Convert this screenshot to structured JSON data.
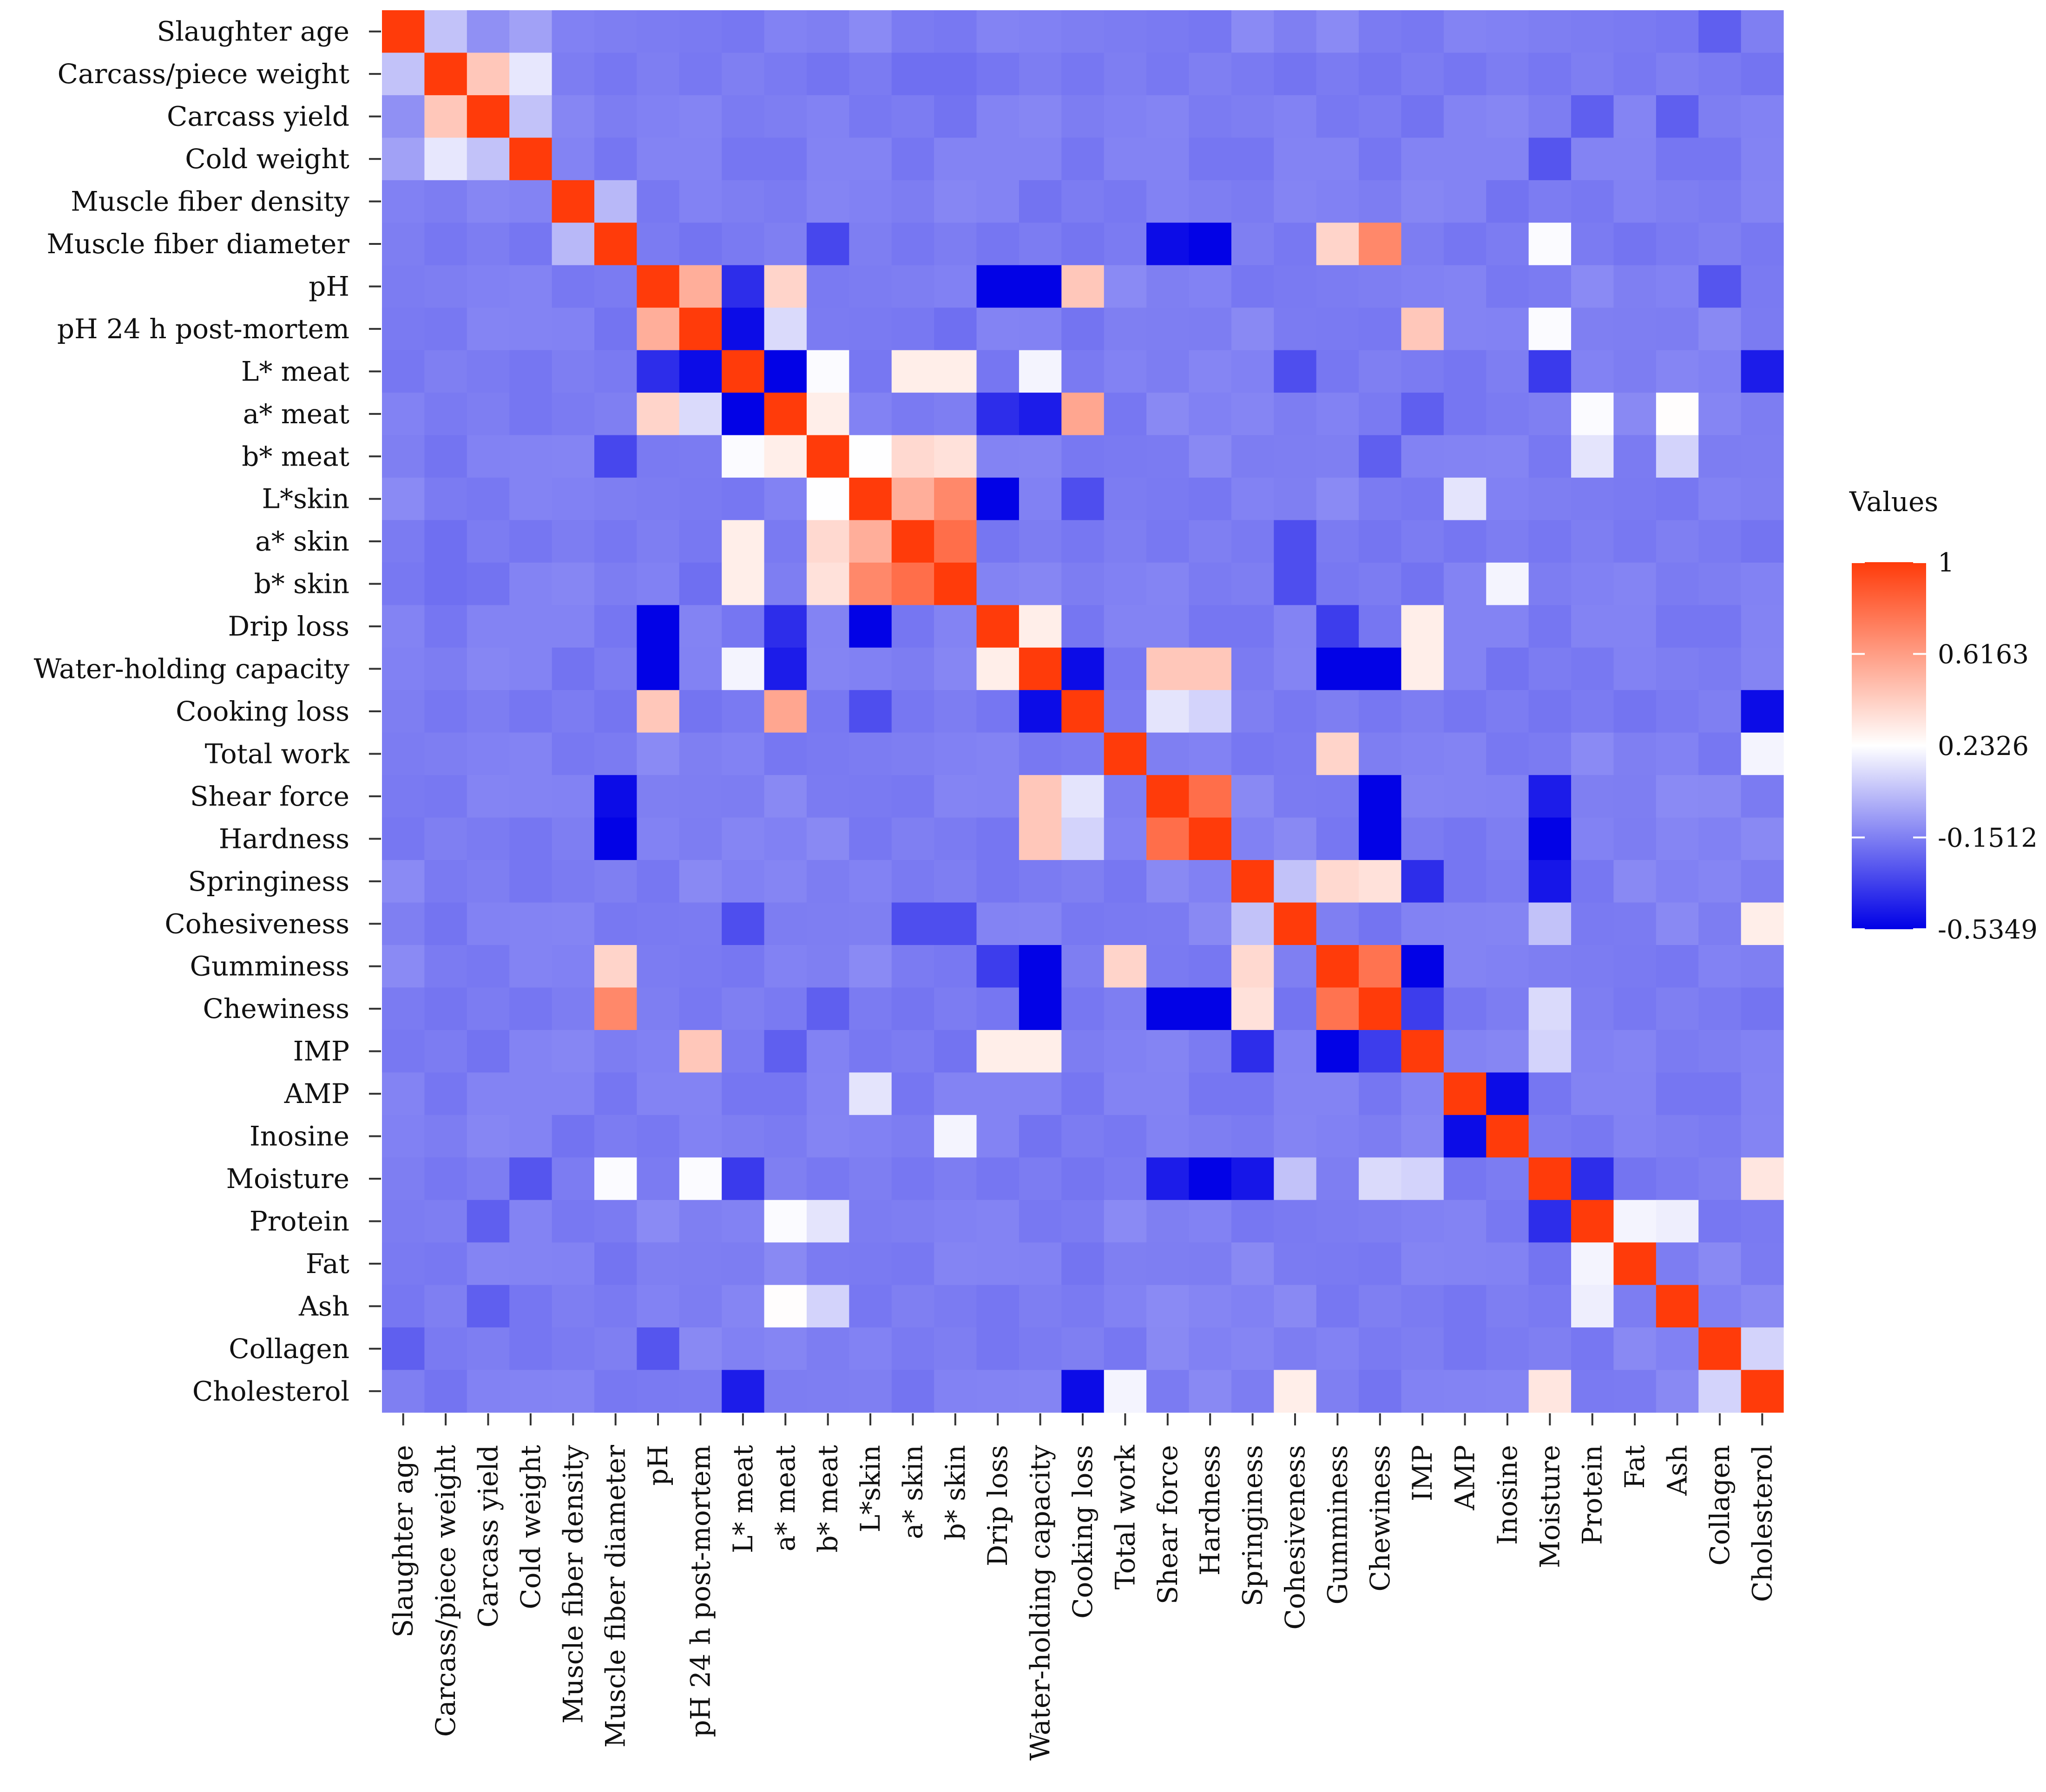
{
  "chart_data": {
    "type": "heatmap",
    "title": "",
    "xlabel": "",
    "ylabel": "",
    "variables": [
      "Slaughter age",
      "Carcass/piece weight",
      "Carcass yield",
      "Cold weight",
      "Muscle fiber density",
      "Muscle fiber diameter",
      "pH",
      "pH 24 h post-mortem",
      "L* meat",
      "a* meat",
      "b* meat",
      "L*skin",
      "a* skin",
      "b* skin",
      "Drip loss",
      "Water-holding capacity",
      "Cooking loss",
      "Total work",
      "Shear force",
      "Hardness",
      "Springiness",
      "Cohesiveness",
      "Gumminess",
      "Chewiness",
      "IMP",
      "AMP",
      "Inosine",
      "Moisture",
      "Protein",
      "Fat",
      "Ash",
      "Collagen",
      "Cholesterol"
    ],
    "value_range": [
      -0.5349,
      1
    ],
    "colorscale": {
      "low": "#0000e6",
      "mid": "#ffffff",
      "mid_value": 0.2326,
      "high": "#ff3b0a"
    },
    "legend": {
      "title": "Values",
      "ticks": [
        "1",
        "0.6163",
        "0.2326",
        "-0.1512",
        "-0.5349"
      ],
      "position": "right"
    },
    "overrides": [
      [
        0,
        1,
        0.05
      ],
      [
        0,
        2,
        -0.1
      ],
      [
        0,
        3,
        -0.05
      ],
      [
        0,
        20,
        -0.12
      ],
      [
        0,
        31,
        -0.25
      ],
      [
        1,
        2,
        0.45
      ],
      [
        1,
        3,
        0.16
      ],
      [
        1,
        12,
        -0.2
      ],
      [
        1,
        13,
        -0.2
      ],
      [
        2,
        3,
        0.05
      ],
      [
        2,
        28,
        -0.25
      ],
      [
        2,
        30,
        -0.25
      ],
      [
        3,
        27,
        -0.28
      ],
      [
        4,
        5,
        0.02
      ],
      [
        5,
        18,
        -0.5
      ],
      [
        5,
        19,
        -0.53
      ],
      [
        5,
        22,
        0.4
      ],
      [
        5,
        23,
        0.7
      ],
      [
        5,
        27,
        0.22
      ],
      [
        5,
        10,
        -0.32
      ],
      [
        6,
        7,
        0.55
      ],
      [
        6,
        14,
        -0.53
      ],
      [
        6,
        15,
        -0.53
      ],
      [
        6,
        16,
        0.45
      ],
      [
        6,
        8,
        -0.4
      ],
      [
        6,
        9,
        0.4
      ],
      [
        6,
        31,
        -0.28
      ],
      [
        7,
        8,
        -0.5
      ],
      [
        7,
        9,
        0.12
      ],
      [
        7,
        24,
        0.45
      ],
      [
        7,
        27,
        0.22
      ],
      [
        7,
        13,
        -0.2
      ],
      [
        8,
        9,
        -0.53
      ],
      [
        8,
        10,
        0.22
      ],
      [
        8,
        12,
        0.3
      ],
      [
        8,
        13,
        0.3
      ],
      [
        8,
        15,
        0.2
      ],
      [
        8,
        21,
        -0.3
      ],
      [
        8,
        27,
        -0.36
      ],
      [
        8,
        32,
        -0.45
      ],
      [
        9,
        10,
        0.3
      ],
      [
        9,
        16,
        0.58
      ],
      [
        9,
        14,
        -0.4
      ],
      [
        9,
        15,
        -0.45
      ],
      [
        9,
        24,
        -0.25
      ],
      [
        9,
        28,
        0.22
      ],
      [
        9,
        30,
        0.24
      ],
      [
        10,
        11,
        0.23
      ],
      [
        10,
        12,
        0.38
      ],
      [
        10,
        13,
        0.35
      ],
      [
        10,
        5,
        -0.32
      ],
      [
        10,
        23,
        -0.25
      ],
      [
        10,
        28,
        0.15
      ],
      [
        10,
        30,
        0.1
      ],
      [
        11,
        12,
        0.55
      ],
      [
        11,
        13,
        0.7
      ],
      [
        11,
        14,
        -0.53
      ],
      [
        11,
        16,
        -0.3
      ],
      [
        11,
        25,
        0.15
      ],
      [
        12,
        13,
        0.8
      ],
      [
        12,
        21,
        -0.3
      ],
      [
        13,
        21,
        -0.3
      ],
      [
        13,
        26,
        0.2
      ],
      [
        14,
        15,
        0.3
      ],
      [
        14,
        24,
        0.3
      ],
      [
        14,
        22,
        -0.35
      ],
      [
        15,
        16,
        -0.5
      ],
      [
        15,
        18,
        0.45
      ],
      [
        15,
        19,
        0.45
      ],
      [
        15,
        22,
        -0.53
      ],
      [
        15,
        23,
        -0.53
      ],
      [
        15,
        24,
        0.3
      ],
      [
        16,
        32,
        -0.5
      ],
      [
        16,
        18,
        0.15
      ],
      [
        16,
        19,
        0.1
      ],
      [
        17,
        22,
        0.4
      ],
      [
        17,
        32,
        0.2
      ],
      [
        18,
        19,
        0.8
      ],
      [
        18,
        23,
        -0.53
      ],
      [
        18,
        27,
        -0.45
      ],
      [
        18,
        30,
        -0.12
      ],
      [
        19,
        23,
        -0.53
      ],
      [
        19,
        27,
        -0.53
      ],
      [
        20,
        22,
        0.38
      ],
      [
        20,
        23,
        0.35
      ],
      [
        20,
        24,
        -0.4
      ],
      [
        20,
        27,
        -0.47
      ],
      [
        20,
        21,
        0.05
      ],
      [
        21,
        27,
        0.05
      ],
      [
        21,
        32,
        0.3
      ],
      [
        22,
        23,
        0.78
      ],
      [
        22,
        24,
        -0.53
      ],
      [
        23,
        24,
        -0.35
      ],
      [
        23,
        27,
        0.12
      ],
      [
        24,
        27,
        0.1
      ],
      [
        25,
        26,
        -0.5
      ],
      [
        27,
        28,
        -0.4
      ],
      [
        27,
        32,
        0.33
      ],
      [
        28,
        29,
        0.2
      ],
      [
        28,
        30,
        0.18
      ],
      [
        31,
        32,
        0.1
      ]
    ]
  }
}
